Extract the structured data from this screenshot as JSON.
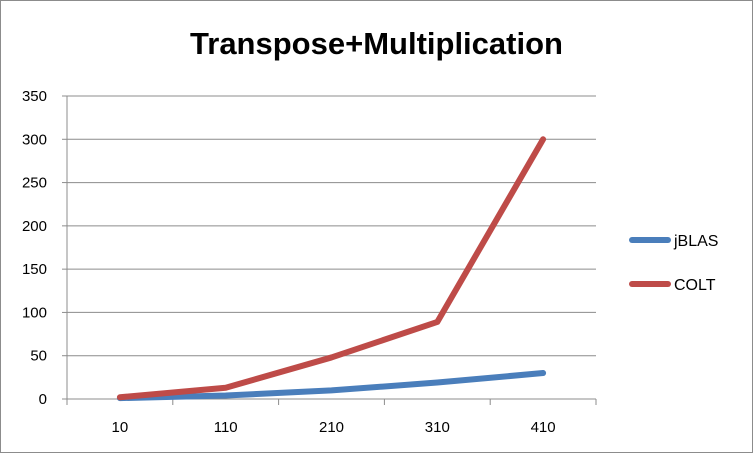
{
  "chart_data": {
    "type": "line",
    "title": "Transpose+Multiplication",
    "xlabel": "",
    "ylabel": "",
    "categories": [
      "10",
      "110",
      "210",
      "310",
      "410"
    ],
    "ylim": [
      0,
      350
    ],
    "yticks": [
      0,
      50,
      100,
      150,
      200,
      250,
      300,
      350
    ],
    "grid": true,
    "legend_position": "right",
    "series": [
      {
        "name": "jBLAS",
        "color": "#4a7ebb",
        "values": [
          1,
          4,
          10,
          19,
          30
        ]
      },
      {
        "name": "COLT",
        "color": "#be4b48",
        "values": [
          2,
          13,
          48,
          89,
          300
        ]
      }
    ]
  }
}
